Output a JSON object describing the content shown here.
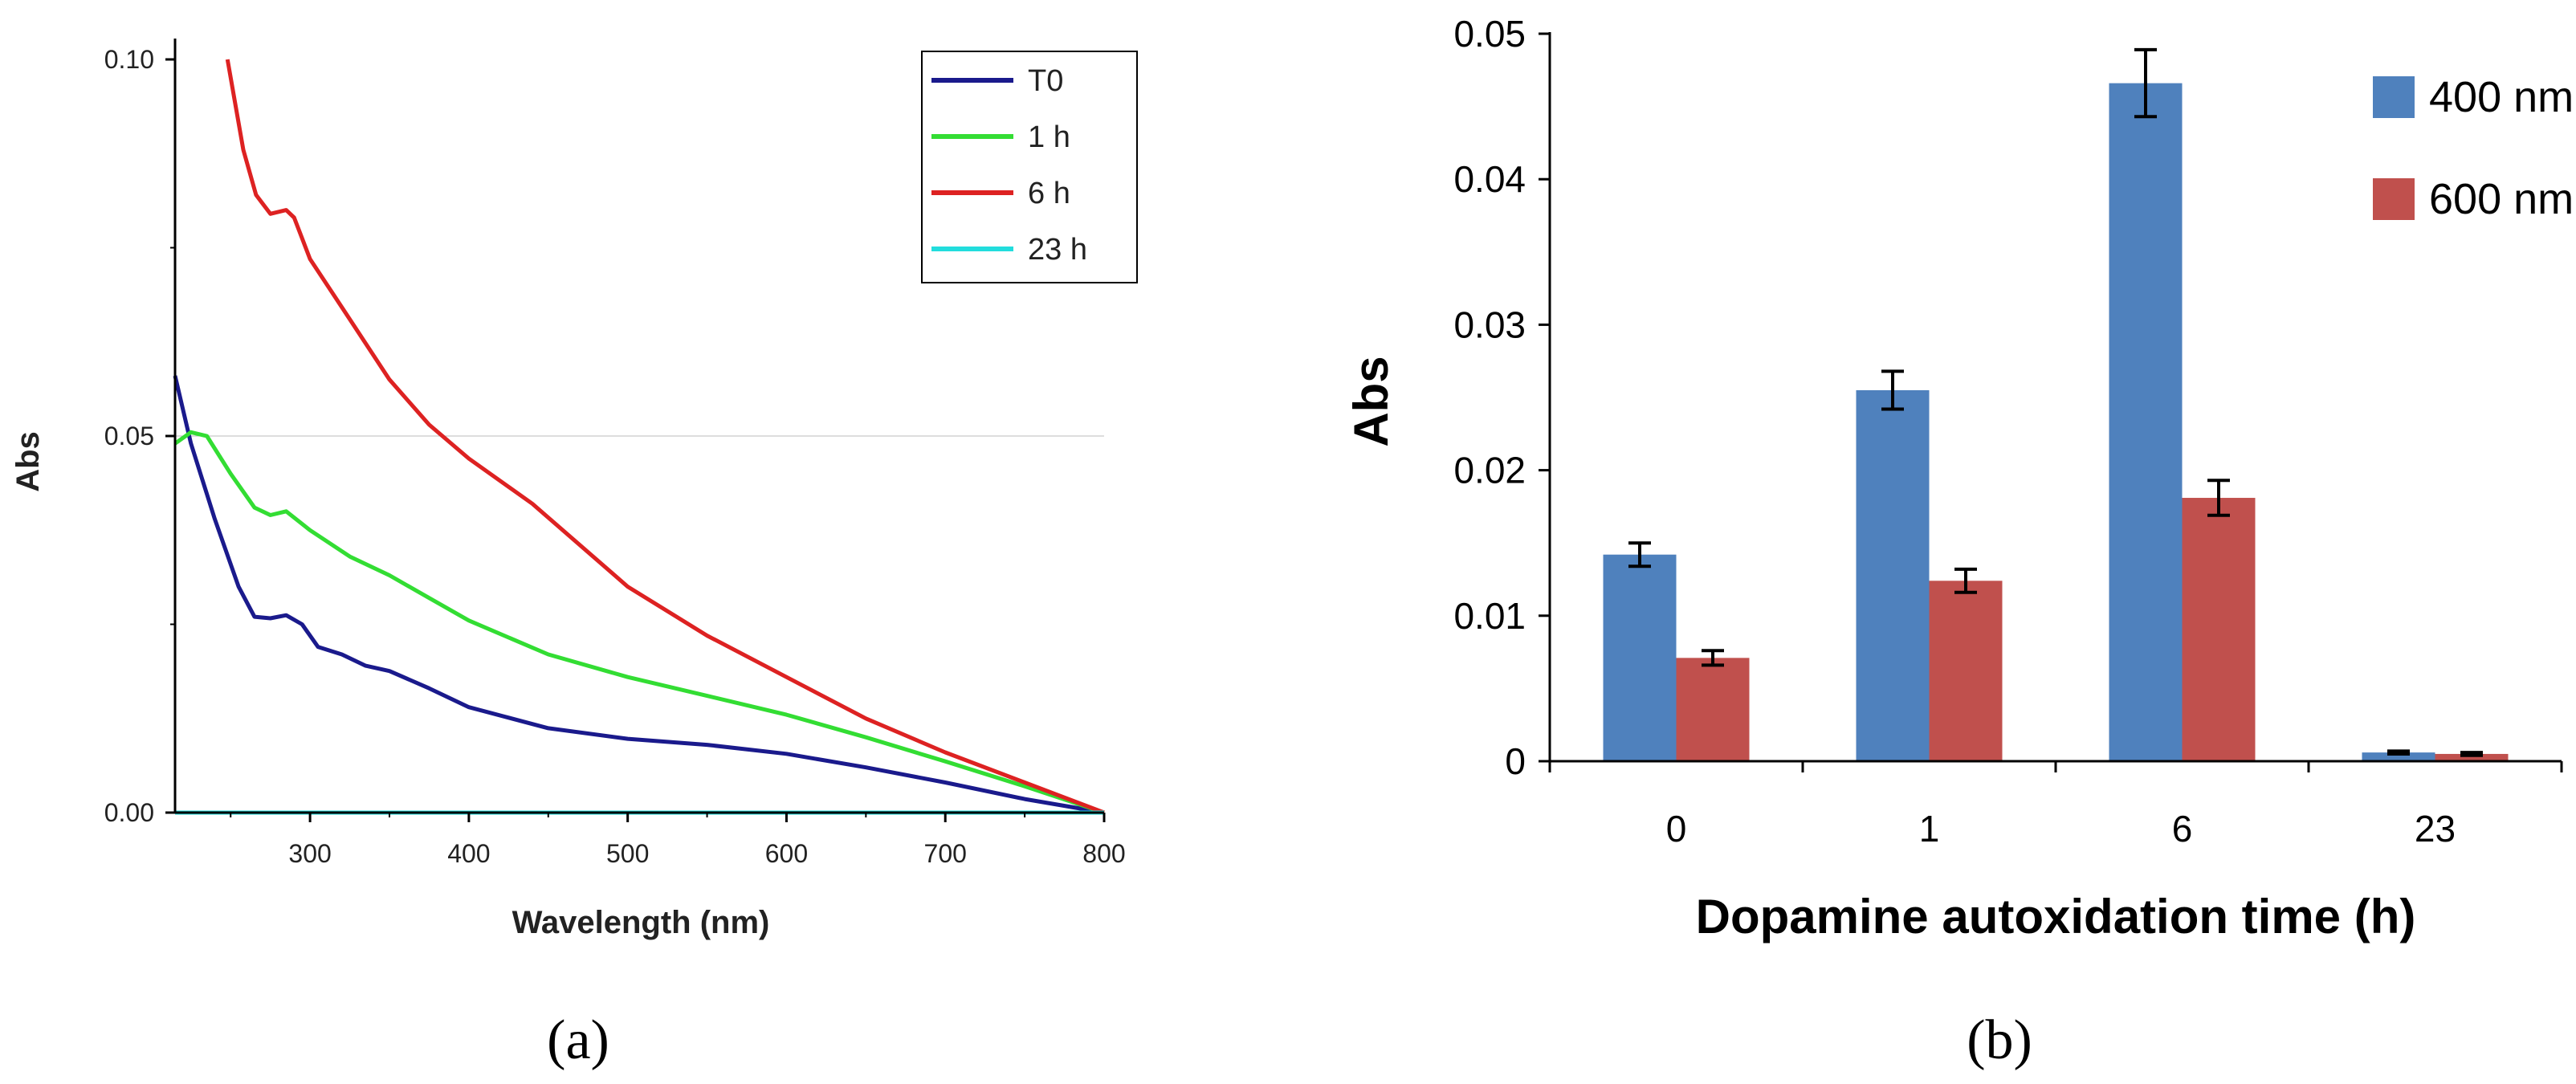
{
  "chart_data": [
    {
      "panel_label": "(a)",
      "type": "line",
      "xlabel": "Wavelength (nm)",
      "ylabel": "Abs",
      "xlim": [
        215,
        800
      ],
      "ylim": [
        0,
        0.1
      ],
      "x_ticks": [
        "300",
        "400",
        "500",
        "600",
        "700",
        "800"
      ],
      "y_ticks": [
        "0.00",
        "0.05",
        "0.10"
      ],
      "legend": [
        "T0",
        "1 h",
        "6 h",
        "23 h"
      ],
      "legend_position": "top-right",
      "series": [
        {
          "name": "T0",
          "color": "#1a1a8c",
          "points": [
            [
              215,
              0.058
            ],
            [
              225,
              0.049
            ],
            [
              240,
              0.039
            ],
            [
              255,
              0.03
            ],
            [
              265,
              0.026
            ],
            [
              275,
              0.0258
            ],
            [
              285,
              0.0262
            ],
            [
              295,
              0.025
            ],
            [
              305,
              0.022
            ],
            [
              320,
              0.021
            ],
            [
              335,
              0.0195
            ],
            [
              350,
              0.0188
            ],
            [
              375,
              0.0165
            ],
            [
              400,
              0.014
            ],
            [
              450,
              0.0112
            ],
            [
              500,
              0.0098
            ],
            [
              550,
              0.009
            ],
            [
              600,
              0.0078
            ],
            [
              650,
              0.006
            ],
            [
              700,
              0.004
            ],
            [
              750,
              0.0018
            ],
            [
              800,
              0.0
            ]
          ]
        },
        {
          "name": "1 h",
          "color": "#33dd33",
          "points": [
            [
              215,
              0.049
            ],
            [
              225,
              0.0505
            ],
            [
              235,
              0.05
            ],
            [
              250,
              0.045
            ],
            [
              265,
              0.0405
            ],
            [
              275,
              0.0395
            ],
            [
              285,
              0.04
            ],
            [
              300,
              0.0375
            ],
            [
              325,
              0.034
            ],
            [
              350,
              0.0315
            ],
            [
              375,
              0.0285
            ],
            [
              400,
              0.0255
            ],
            [
              450,
              0.021
            ],
            [
              500,
              0.018
            ],
            [
              550,
              0.0155
            ],
            [
              600,
              0.013
            ],
            [
              650,
              0.01
            ],
            [
              700,
              0.0068
            ],
            [
              750,
              0.0035
            ],
            [
              800,
              0.0
            ]
          ]
        },
        {
          "name": "6 h",
          "color": "#dd2222",
          "points": [
            [
              248,
              0.1
            ],
            [
              258,
              0.088
            ],
            [
              266,
              0.082
            ],
            [
              275,
              0.0795
            ],
            [
              285,
              0.08
            ],
            [
              290,
              0.079
            ],
            [
              300,
              0.0735
            ],
            [
              325,
              0.0655
            ],
            [
              350,
              0.0575
            ],
            [
              375,
              0.0515
            ],
            [
              400,
              0.047
            ],
            [
              440,
              0.041
            ],
            [
              500,
              0.03
            ],
            [
              550,
              0.0235
            ],
            [
              600,
              0.018
            ],
            [
              650,
              0.0125
            ],
            [
              700,
              0.008
            ],
            [
              750,
              0.004
            ],
            [
              800,
              0.0
            ]
          ]
        },
        {
          "name": "23 h",
          "color": "#22dddd",
          "points": [
            [
              215,
              0.0
            ],
            [
              800,
              0.0
            ]
          ]
        }
      ]
    },
    {
      "panel_label": "(b)",
      "type": "bar",
      "xlabel": "Dopamine autoxidation time (h)",
      "ylabel": "Abs",
      "ylim": [
        0,
        0.05
      ],
      "y_ticks": [
        "0",
        "0.01",
        "0.02",
        "0.03",
        "0.04",
        "0.05"
      ],
      "categories": [
        "0",
        "1",
        "6",
        "23"
      ],
      "legend_position": "top-right",
      "series": [
        {
          "name": "400 nm",
          "color": "#4f81bd",
          "values": [
            0.0142,
            0.0255,
            0.0466,
            0.0006
          ],
          "errors": [
            0.0008,
            0.0013,
            0.0023,
            0.0001
          ]
        },
        {
          "name": "600 nm",
          "color": "#c0504d",
          "values": [
            0.0071,
            0.0124,
            0.0181,
            0.0005
          ],
          "errors": [
            0.0005,
            0.0008,
            0.0012,
            0.0001
          ]
        }
      ]
    }
  ]
}
